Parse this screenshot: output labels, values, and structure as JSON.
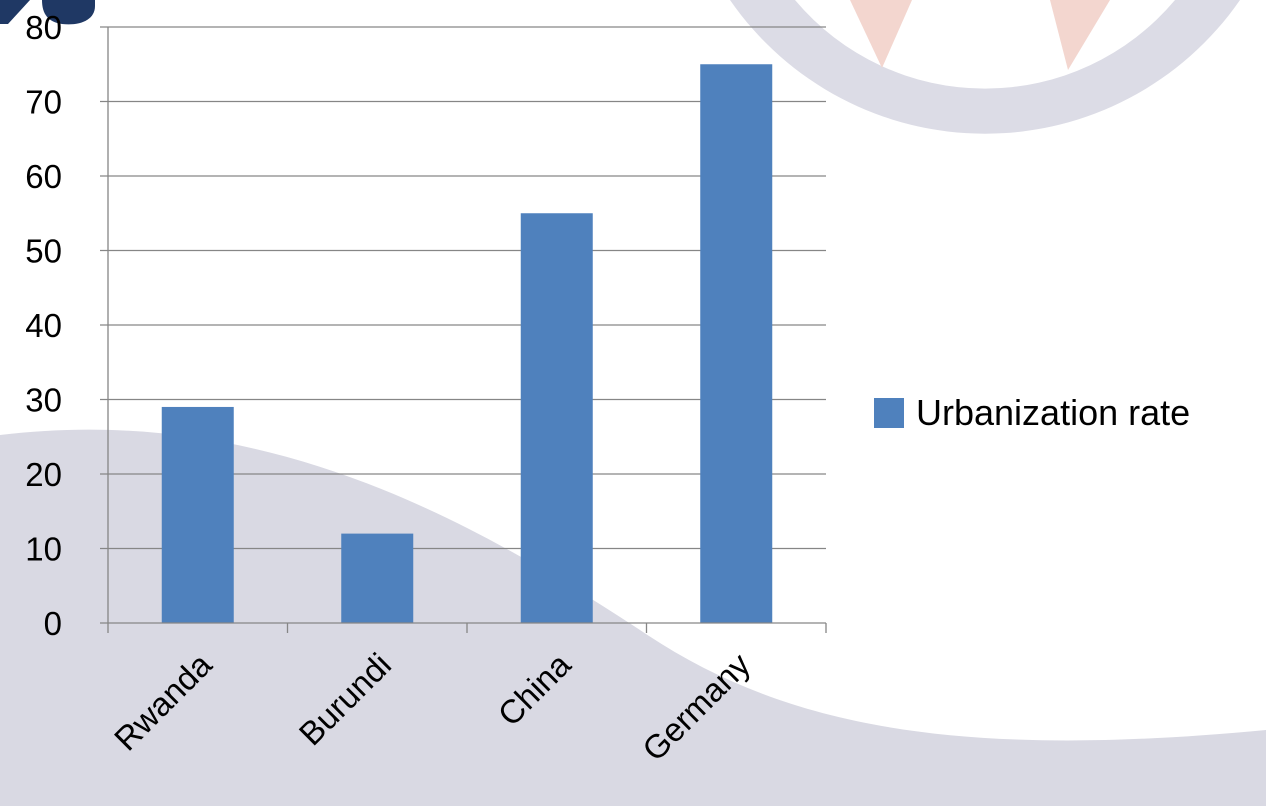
{
  "colors": {
    "bar": "#4F81BD",
    "gridline": "#868686",
    "axis": "#868686",
    "background_wave": "#d9d9e3",
    "decoration_ring": "#dcdce6",
    "decoration_accent": "#f3d6cf"
  },
  "legend": {
    "label": "Urbanization rate",
    "position": "right"
  },
  "chart_data": {
    "type": "bar",
    "categories": [
      "Rwanda",
      "Burundi",
      "China",
      "Germany"
    ],
    "series": [
      {
        "name": "Urbanization rate",
        "values": [
          29,
          12,
          55,
          75
        ]
      }
    ],
    "yticks": [
      0,
      10,
      20,
      30,
      40,
      50,
      60,
      70,
      80
    ],
    "ylim": [
      0,
      80
    ],
    "grid": true,
    "title": "",
    "xlabel": "",
    "ylabel": ""
  }
}
